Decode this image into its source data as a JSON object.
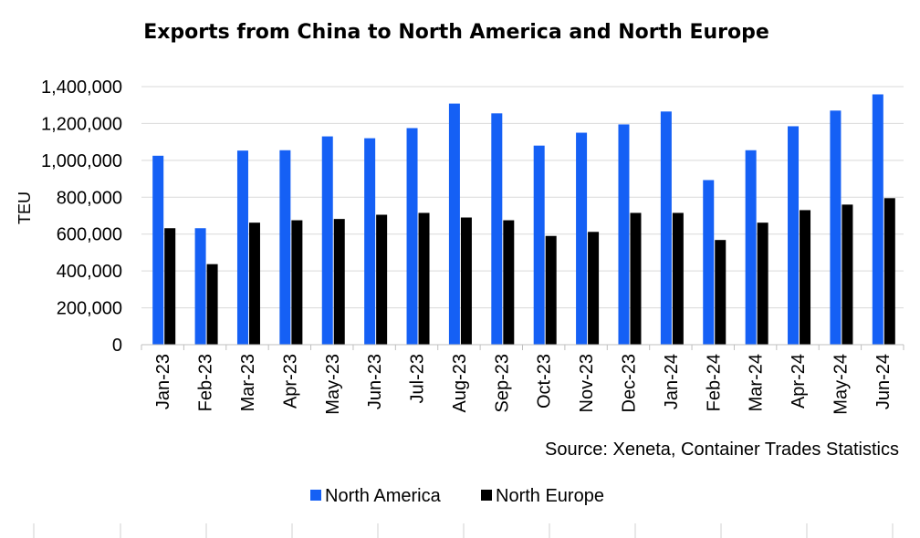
{
  "chart_data": {
    "type": "bar",
    "title": "Exports from China to North America and North Europe",
    "xlabel": "",
    "ylabel": "TEU",
    "ylim": [
      0,
      1400000
    ],
    "yticks": [
      0,
      200000,
      400000,
      600000,
      800000,
      1000000,
      1200000,
      1400000
    ],
    "ytick_labels": [
      "0",
      "200,000",
      "400,000",
      "600,000",
      "800,000",
      "1,000,000",
      "1,200,000",
      "1,400,000"
    ],
    "categories": [
      "Jan-23",
      "Feb-23",
      "Mar-23",
      "Apr-23",
      "May-23",
      "Jun-23",
      "Jul-23",
      "Aug-23",
      "Sep-23",
      "Oct-23",
      "Nov-23",
      "Dec-23",
      "Jan-24",
      "Feb-24",
      "Mar-24",
      "Apr-24",
      "May-24",
      "Jun-24"
    ],
    "series": [
      {
        "name": "North America",
        "color": "#1560f5",
        "values": [
          1025000,
          632000,
          1053000,
          1055000,
          1130000,
          1120000,
          1175000,
          1308000,
          1255000,
          1080000,
          1150000,
          1195000,
          1265000,
          893000,
          1055000,
          1185000,
          1270000,
          1358000
        ]
      },
      {
        "name": "North Europe",
        "color": "#000000",
        "values": [
          632000,
          437000,
          662000,
          675000,
          682000,
          705000,
          715000,
          690000,
          675000,
          590000,
          612000,
          715000,
          715000,
          568000,
          662000,
          730000,
          760000,
          795000
        ]
      }
    ],
    "grid": true,
    "legend": "bottom-center",
    "source": "Source: Xeneta, Container Trades Statistics"
  }
}
